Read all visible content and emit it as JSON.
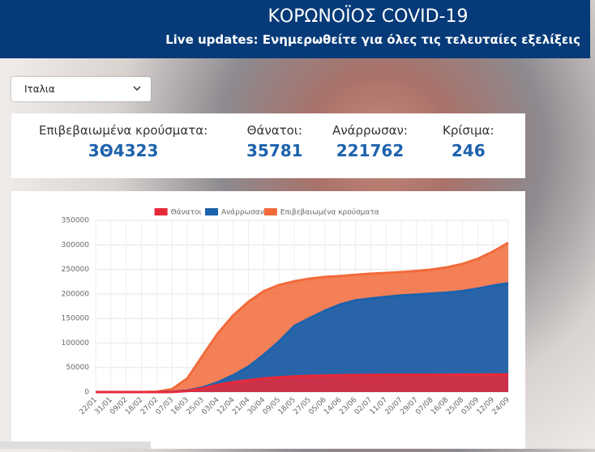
{
  "header": {
    "title": "ΚΟΡΩΝΟΪΟΣ COVID-19",
    "subtitle": "Live updates: Ενημερωθείτε για όλες τις τελευταίες εξελίξεις"
  },
  "country_select": "Ιταλια",
  "stats": [
    {
      "label": "Επιβεβαιωμένα κρούσματα:",
      "value": "3Θ4323"
    },
    {
      "label": "Θάνατοι:",
      "value": 35781
    },
    {
      "label": "Ανάρρωσαν:",
      "value": 221762
    },
    {
      "label": "Κρίσιμα:",
      "value": 246
    }
  ],
  "chart_data": {
    "type": "area",
    "categories": [
      "22/01",
      "31/01",
      "09/02",
      "18/02",
      "27/02",
      "07/03",
      "16/03",
      "25/03",
      "03/04",
      "12/04",
      "21/04",
      "30/04",
      "09/05",
      "18/05",
      "27/05",
      "05/06",
      "14/06",
      "23/06",
      "02/07",
      "11/07",
      "20/07",
      "29/07",
      "07/08",
      "16/08",
      "25/08",
      "03/09",
      "12/09",
      "24/09"
    ],
    "series": [
      {
        "name": "Θάνατοι",
        "color": "#e8293a",
        "values": [
          0,
          0,
          0,
          0,
          17,
          233,
          2158,
          7503,
          14681,
          19899,
          24114,
          27682,
          30201,
          31908,
          32955,
          33689,
          34301,
          34675,
          34818,
          34945,
          35058,
          35129,
          35205,
          35396,
          35441,
          35507,
          35610,
          35781
        ]
      },
      {
        "name": "Ανάρρωσαν",
        "color": "#1d62ad",
        "values": [
          0,
          0,
          0,
          0,
          46,
          589,
          2749,
          9362,
          19758,
          34211,
          51600,
          75945,
          103031,
          134560,
          150604,
          165837,
          178526,
          186725,
          190717,
          193978,
          196806,
          198593,
          200766,
          202697,
          205662,
          210801,
          216935,
          221762
        ]
      },
      {
        "name": "Επιβεβαιωμένα κρούσματα",
        "color": "#f26a3a",
        "values": [
          0,
          3,
          3,
          3,
          650,
          5883,
          27980,
          74386,
          119827,
          156363,
          183957,
          205463,
          218268,
          225886,
          231139,
          234531,
          236651,
          238833,
          241184,
          242639,
          244434,
          246776,
          249756,
          254235,
          261174,
          271515,
          286297,
          304323
        ]
      }
    ],
    "ylim": [
      0,
      350000
    ],
    "yticks": [
      0,
      50000,
      100000,
      150000,
      200000,
      250000,
      300000,
      350000
    ],
    "grid": true,
    "legend": "top"
  }
}
